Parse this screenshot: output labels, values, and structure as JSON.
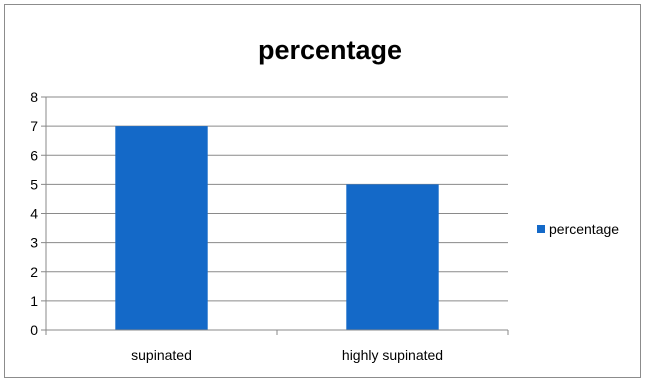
{
  "chart_data": {
    "type": "bar",
    "title": "percentage",
    "categories": [
      "supinated",
      "highly supinated"
    ],
    "series": [
      {
        "name": "percentage",
        "values": [
          7,
          5
        ],
        "color": "#1469C8"
      }
    ],
    "ylim": [
      0,
      8
    ],
    "yticks": [
      0,
      1,
      2,
      3,
      4,
      5,
      6,
      7,
      8
    ],
    "grid": true,
    "legend": "right"
  }
}
